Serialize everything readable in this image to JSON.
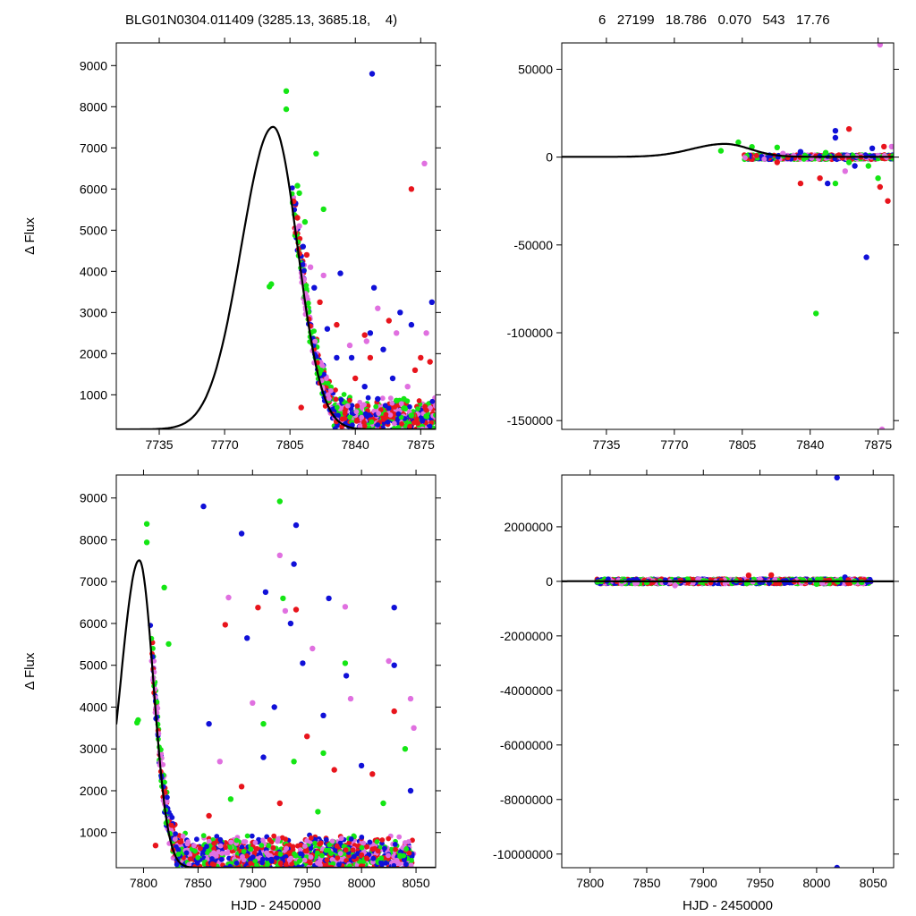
{
  "header": {
    "left": "BLG01N0304.011409 (3285.13, 3685.18,    4)",
    "right": "6   27199   18.786   0.070   543   17.76"
  },
  "colors": {
    "red": "#e8141c",
    "blue": "#1010d8",
    "green": "#14e614",
    "magenta": "#e070e0",
    "model": "#000000"
  },
  "chart_data": [
    {
      "id": "top-left",
      "type": "scatter",
      "title": "",
      "xlabel": "",
      "ylabel": "Δ Flux",
      "xlim": [
        7712,
        7883
      ],
      "ylim": [
        160,
        9550
      ],
      "xticks": [
        7735,
        7770,
        7805,
        7840,
        7875
      ],
      "yticks": [
        1000,
        2000,
        3000,
        4000,
        5000,
        6000,
        7000,
        8000,
        9000
      ],
      "model": {
        "t0": 7796,
        "peak": 7350,
        "base": 160,
        "width_before": 17,
        "width_after": 13
      },
      "series": [
        {
          "color": "green",
          "points": [
            [
              7794,
              3630
            ],
            [
              7795,
              3690
            ],
            [
              7803,
              8380
            ],
            [
              7803,
              7940
            ],
            [
              7809,
              6080
            ],
            [
              7810,
              5900
            ],
            [
              7813,
              5200
            ],
            [
              7819,
              6860
            ],
            [
              7823,
              5510
            ],
            [
              7862,
              860
            ],
            [
              7866,
              900
            ],
            [
              7870,
              500
            ],
            [
              7878,
              480
            ]
          ]
        },
        {
          "color": "blue",
          "points": [
            [
              7808,
              5650
            ],
            [
              7812,
              4600
            ],
            [
              7818,
              3600
            ],
            [
              7825,
              2600
            ],
            [
              7830,
              1900
            ],
            [
              7832,
              3950
            ],
            [
              7838,
              1900
            ],
            [
              7849,
              8800
            ],
            [
              7850,
              3600
            ],
            [
              7848,
              2500
            ],
            [
              7855,
              2100
            ],
            [
              7864,
              3000
            ],
            [
              7870,
              2700
            ],
            [
              7881,
              3250
            ],
            [
              7845,
              1200
            ],
            [
              7852,
              900
            ],
            [
              7860,
              1400
            ]
          ]
        },
        {
          "color": "red",
          "points": [
            [
              7807,
              5700
            ],
            [
              7809,
              5300
            ],
            [
              7814,
              4400
            ],
            [
              7811,
              690
            ],
            [
              7821,
              3250
            ],
            [
              7830,
              2700
            ],
            [
              7840,
              1400
            ],
            [
              7845,
              2450
            ],
            [
              7848,
              1900
            ],
            [
              7858,
              2800
            ],
            [
              7870,
              6000
            ],
            [
              7872,
              1600
            ],
            [
              7875,
              1900
            ],
            [
              7880,
              1800
            ]
          ]
        },
        {
          "color": "magenta",
          "points": [
            [
              7810,
              5100
            ],
            [
              7816,
              4100
            ],
            [
              7823,
              3900
            ],
            [
              7837,
              2200
            ],
            [
              7846,
              2300
            ],
            [
              7852,
              3100
            ],
            [
              7862,
              2500
            ],
            [
              7877,
              6620
            ],
            [
              7878,
              2500
            ],
            [
              7868,
              1200
            ]
          ]
        }
      ]
    },
    {
      "id": "top-right",
      "type": "scatter",
      "title": "",
      "xlabel": "",
      "ylabel": "",
      "xlim": [
        7712,
        7883
      ],
      "ylim": [
        -155000,
        65000
      ],
      "xticks": [
        7735,
        7770,
        7805,
        7840,
        7875
      ],
      "yticks": [
        -150000,
        -100000,
        -50000,
        0,
        50000
      ],
      "model": {
        "t0": 7796,
        "peak": 7350,
        "base": 160,
        "width_before": 17,
        "width_after": 13
      },
      "series": [
        {
          "color": "green",
          "points": [
            [
              7794,
              3600
            ],
            [
              7803,
              8400
            ],
            [
              7810,
              5800
            ],
            [
              7823,
              5500
            ],
            [
              7843,
              -89000
            ],
            [
              7853,
              -15000
            ],
            [
              7870,
              -5000
            ],
            [
              7875,
              -12000
            ],
            [
              7848,
              2500
            ],
            [
              7860,
              -3000
            ]
          ]
        },
        {
          "color": "blue",
          "points": [
            [
              7849,
              -15000
            ],
            [
              7853,
              15000
            ],
            [
              7853,
              11000
            ],
            [
              7863,
              -5000
            ],
            [
              7869,
              -57000
            ],
            [
              7835,
              3000
            ],
            [
              7872,
              5000
            ]
          ]
        },
        {
          "color": "red",
          "points": [
            [
              7835,
              -15000
            ],
            [
              7845,
              -12000
            ],
            [
              7860,
              16000
            ],
            [
              7876,
              -17000
            ],
            [
              7880,
              -25000
            ],
            [
              7878,
              6000
            ],
            [
              7823,
              -3000
            ]
          ]
        },
        {
          "color": "magenta",
          "points": [
            [
              7876,
              64000
            ],
            [
              7877,
              -155000
            ],
            [
              7882,
              6000
            ],
            [
              7858,
              -8000
            ],
            [
              7826,
              2000
            ]
          ]
        }
      ]
    },
    {
      "id": "bottom-left",
      "type": "scatter",
      "title": "",
      "xlabel": "HJD - 2450000",
      "ylabel": "Δ Flux",
      "xlim": [
        7775,
        8068
      ],
      "ylim": [
        160,
        9550
      ],
      "xticks": [
        7800,
        7850,
        7900,
        7950,
        8000,
        8050
      ],
      "yticks": [
        1000,
        2000,
        3000,
        4000,
        5000,
        6000,
        7000,
        8000,
        9000
      ],
      "model": {
        "t0": 7796,
        "peak": 7350,
        "base": 160,
        "width_before": 17,
        "width_after": 13
      },
      "series": [
        {
          "color": "green",
          "points": [
            [
              7794,
              3630
            ],
            [
              7795,
              3690
            ],
            [
              7803,
              8380
            ],
            [
              7803,
              7940
            ],
            [
              7819,
              6860
            ],
            [
              7823,
              5510
            ],
            [
              7910,
              3600
            ],
            [
              7925,
              8920
            ],
            [
              7928,
              6600
            ],
            [
              7938,
              2700
            ],
            [
              7965,
              2900
            ],
            [
              7985,
              5050
            ],
            [
              8040,
              3000
            ],
            [
              7880,
              1800
            ],
            [
              7960,
              1500
            ],
            [
              8020,
              1700
            ]
          ]
        },
        {
          "color": "blue",
          "points": [
            [
              7855,
              8800
            ],
            [
              7890,
              8150
            ],
            [
              7912,
              6750
            ],
            [
              7938,
              7420
            ],
            [
              7940,
              8350
            ],
            [
              7935,
              6000
            ],
            [
              7946,
              5050
            ],
            [
              7970,
              6600
            ],
            [
              7986,
              4750
            ],
            [
              8030,
              6380
            ],
            [
              8030,
              5000
            ],
            [
              7895,
              5650
            ],
            [
              7920,
              4000
            ],
            [
              7965,
              3800
            ],
            [
              8000,
              2600
            ],
            [
              7860,
              3600
            ],
            [
              7910,
              2800
            ],
            [
              8045,
              2000
            ]
          ]
        },
        {
          "color": "red",
          "points": [
            [
              7811,
              690
            ],
            [
              7875,
              5970
            ],
            [
              7905,
              6380
            ],
            [
              7940,
              6330
            ],
            [
              7975,
              2500
            ],
            [
              8030,
              3900
            ],
            [
              7890,
              2100
            ],
            [
              7950,
              3300
            ],
            [
              7925,
              1700
            ],
            [
              8010,
              2400
            ],
            [
              7860,
              1400
            ]
          ]
        },
        {
          "color": "magenta",
          "points": [
            [
              7878,
              6620
            ],
            [
              7925,
              7630
            ],
            [
              7930,
              6300
            ],
            [
              7985,
              6400
            ],
            [
              8025,
              5100
            ],
            [
              8045,
              4200
            ],
            [
              8048,
              3500
            ],
            [
              7990,
              4200
            ],
            [
              7955,
              5400
            ],
            [
              7900,
              4100
            ],
            [
              7870,
              2700
            ]
          ]
        }
      ]
    },
    {
      "id": "bottom-right",
      "type": "scatter",
      "title": "",
      "xlabel": "HJD - 2450000",
      "ylabel": "",
      "xlim": [
        7775,
        8068
      ],
      "ylim": [
        -10500000,
        3900000
      ],
      "xticks": [
        7800,
        7850,
        7900,
        7950,
        8000,
        8050
      ],
      "yticks": [
        -10000000,
        -8000000,
        -6000000,
        -4000000,
        -2000000,
        0,
        2000000
      ],
      "model": {
        "t0": 7796,
        "peak": 7350,
        "base": 160,
        "width_before": 17,
        "width_after": 13
      },
      "series": [
        {
          "color": "green",
          "points": [
            [
              7810,
              0
            ],
            [
              7850,
              -40000
            ],
            [
              7900,
              20000
            ],
            [
              7950,
              -60000
            ],
            [
              8000,
              -100000
            ],
            [
              8040,
              -30000
            ]
          ]
        },
        {
          "color": "blue",
          "points": [
            [
              8018,
              3800000
            ],
            [
              8018,
              -10500000
            ],
            [
              8025,
              150000
            ],
            [
              8045,
              -20000
            ],
            [
              7950,
              -40000
            ]
          ]
        },
        {
          "color": "red",
          "points": [
            [
              7940,
              220000
            ],
            [
              7960,
              230000
            ],
            [
              8028,
              50000
            ],
            [
              7880,
              30000
            ]
          ]
        },
        {
          "color": "magenta",
          "points": [
            [
              7875,
              -150000
            ],
            [
              7950,
              80000
            ],
            [
              8005,
              -60000
            ]
          ]
        }
      ]
    }
  ]
}
